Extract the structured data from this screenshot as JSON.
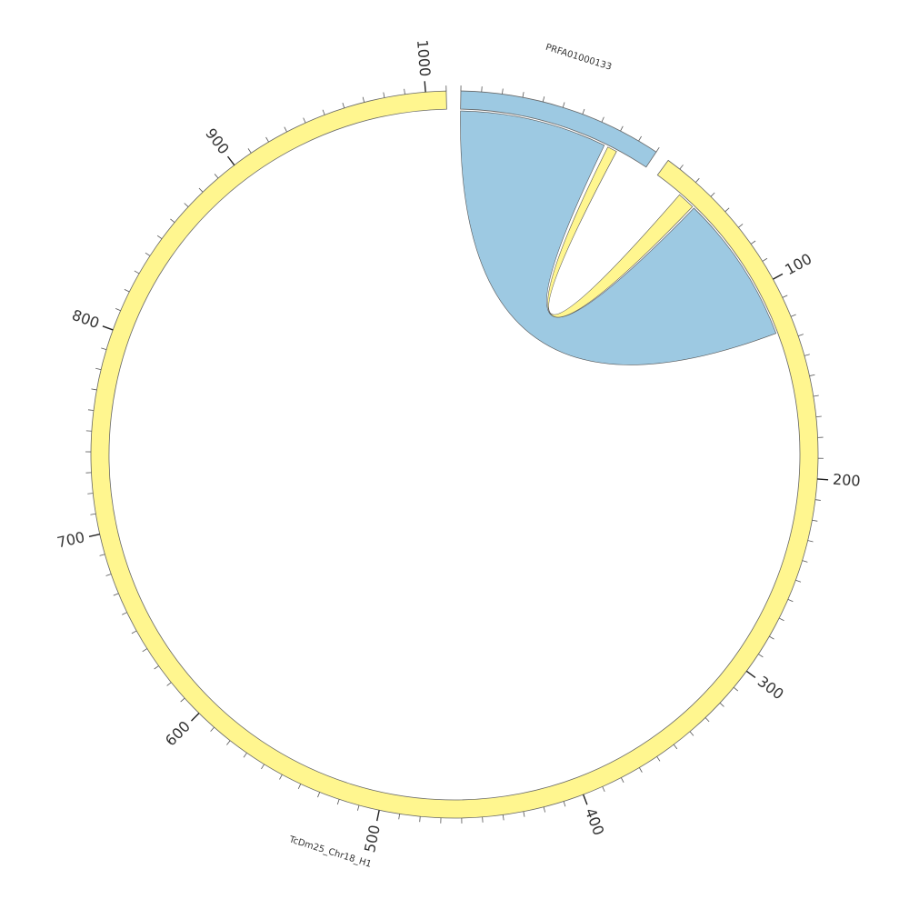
{
  "chart_data": {
    "type": "chord",
    "sectors": [
      {
        "name": "PRFA01000133",
        "color": "#9dc9e2",
        "xlim": [
          0,
          100
        ],
        "ticks": [],
        "minor_tick_step": 10
      },
      {
        "name": "TcDm25_Chr18_H1",
        "color": "#fff68f",
        "xlim": [
          23,
          1010
        ],
        "ticks": [
          100,
          200,
          300,
          400,
          500,
          600,
          700,
          800,
          900,
          1000
        ],
        "minor_tick_step": 10
      }
    ],
    "links": [
      {
        "from_sector": "PRFA01000133",
        "from_range": [
          0,
          76
        ],
        "to_sector": "TcDm25_Chr18_H1",
        "to_range": [
          48,
          125
        ],
        "color": "#9dc9e2"
      },
      {
        "from_sector": "PRFA01000133",
        "from_range": [
          78,
          83
        ],
        "to_sector": "TcDm25_Chr18_H1",
        "to_range": [
          38,
          47
        ],
        "color": "#fff68f"
      }
    ]
  }
}
